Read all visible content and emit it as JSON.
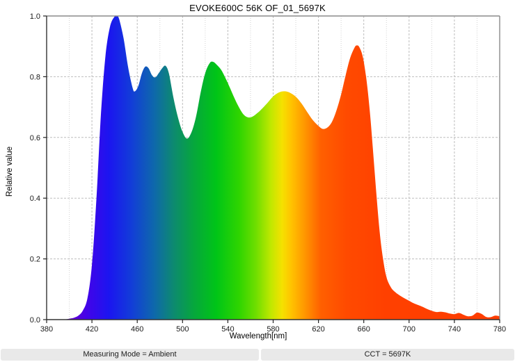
{
  "title": "EVOKE600C 56K OF_01_5697K",
  "status_bar": {
    "left": "Measuring Mode = Ambient",
    "right": "CCT = 5697K"
  },
  "chart_data": {
    "type": "area",
    "title": "EVOKE600C 56K OF_01_5697K",
    "xlabel": "Wavelength[nm]",
    "ylabel": "Relative value",
    "xlim": [
      380,
      780
    ],
    "ylim": [
      0.0,
      1.0
    ],
    "x_ticks": [
      380,
      420,
      460,
      500,
      540,
      580,
      620,
      660,
      700,
      740,
      780
    ],
    "y_ticks": [
      0.0,
      0.2,
      0.4,
      0.6,
      0.8,
      1.0
    ],
    "y_tick_labels": [
      "0.0",
      "0.2",
      "0.4",
      "0.6",
      "0.8",
      "1.0"
    ],
    "grid": "dashed major gridlines every 40nm and 0.2; dotted minor vertical gridlines every 20nm",
    "legend": "none",
    "annotations": {
      "peak_blue_nm": 442,
      "peak_blue_value": 1.0,
      "peak_cyan1_nm": 468,
      "peak_cyan1_value": 0.835,
      "peak_cyan2_nm": 486,
      "peak_cyan2_value": 0.835,
      "peak_green_nm": 527,
      "peak_green_value": 0.85,
      "hump_yellow_nm": 590,
      "hump_yellow_value": 0.75,
      "peak_red_nm": 654,
      "peak_red_value": 0.9,
      "dip_teal_nm": 504,
      "dip_teal_value": 0.6,
      "dip_lime_nm": 558,
      "dip_lime_value": 0.665,
      "dip_orange_nm": 624,
      "dip_orange_value": 0.63
    },
    "points": [
      [
        380,
        0
      ],
      [
        390,
        0
      ],
      [
        396,
        0.001
      ],
      [
        400,
        0.003
      ],
      [
        404,
        0.006
      ],
      [
        408,
        0.013
      ],
      [
        412,
        0.03
      ],
      [
        416,
        0.07
      ],
      [
        420,
        0.18
      ],
      [
        424,
        0.4
      ],
      [
        428,
        0.68
      ],
      [
        432,
        0.87
      ],
      [
        436,
        0.965
      ],
      [
        440,
        0.998
      ],
      [
        442,
        1.0
      ],
      [
        444,
        0.99
      ],
      [
        448,
        0.925
      ],
      [
        452,
        0.83
      ],
      [
        456,
        0.762
      ],
      [
        458,
        0.752
      ],
      [
        461,
        0.77
      ],
      [
        464,
        0.81
      ],
      [
        467,
        0.833
      ],
      [
        470,
        0.828
      ],
      [
        473,
        0.805
      ],
      [
        476,
        0.798
      ],
      [
        479,
        0.812
      ],
      [
        482,
        0.828
      ],
      [
        485,
        0.836
      ],
      [
        488,
        0.81
      ],
      [
        492,
        0.73
      ],
      [
        496,
        0.665
      ],
      [
        500,
        0.618
      ],
      [
        504,
        0.596
      ],
      [
        508,
        0.618
      ],
      [
        512,
        0.67
      ],
      [
        516,
        0.748
      ],
      [
        520,
        0.812
      ],
      [
        524,
        0.845
      ],
      [
        527,
        0.849
      ],
      [
        530,
        0.84
      ],
      [
        534,
        0.823
      ],
      [
        538,
        0.795
      ],
      [
        542,
        0.762
      ],
      [
        546,
        0.728
      ],
      [
        550,
        0.698
      ],
      [
        554,
        0.675
      ],
      [
        558,
        0.666
      ],
      [
        562,
        0.669
      ],
      [
        566,
        0.68
      ],
      [
        570,
        0.694
      ],
      [
        575,
        0.714
      ],
      [
        580,
        0.735
      ],
      [
        585,
        0.748
      ],
      [
        590,
        0.752
      ],
      [
        595,
        0.747
      ],
      [
        600,
        0.734
      ],
      [
        605,
        0.712
      ],
      [
        610,
        0.684
      ],
      [
        615,
        0.657
      ],
      [
        620,
        0.638
      ],
      [
        624,
        0.628
      ],
      [
        628,
        0.633
      ],
      [
        632,
        0.652
      ],
      [
        636,
        0.69
      ],
      [
        640,
        0.742
      ],
      [
        644,
        0.805
      ],
      [
        648,
        0.862
      ],
      [
        652,
        0.897
      ],
      [
        654,
        0.903
      ],
      [
        656,
        0.898
      ],
      [
        659,
        0.868
      ],
      [
        662,
        0.8
      ],
      [
        665,
        0.7
      ],
      [
        668,
        0.565
      ],
      [
        671,
        0.42
      ],
      [
        674,
        0.29
      ],
      [
        677,
        0.2
      ],
      [
        680,
        0.14
      ],
      [
        684,
        0.106
      ],
      [
        688,
        0.09
      ],
      [
        692,
        0.079
      ],
      [
        696,
        0.07
      ],
      [
        700,
        0.062
      ],
      [
        704,
        0.054
      ],
      [
        708,
        0.048
      ],
      [
        712,
        0.042
      ],
      [
        716,
        0.035
      ],
      [
        720,
        0.029
      ],
      [
        724,
        0.025
      ],
      [
        728,
        0.026
      ],
      [
        732,
        0.024
      ],
      [
        736,
        0.02
      ],
      [
        740,
        0.018
      ],
      [
        744,
        0.022
      ],
      [
        748,
        0.016
      ],
      [
        752,
        0.011
      ],
      [
        756,
        0.013
      ],
      [
        760,
        0.023
      ],
      [
        764,
        0.019
      ],
      [
        768,
        0.009
      ],
      [
        772,
        0.008
      ],
      [
        776,
        0.013
      ],
      [
        780,
        0.011
      ]
    ],
    "gradient": [
      {
        "pos": 5,
        "color": "#6600d2"
      },
      {
        "pos": 8.75,
        "color": "#4403e8"
      },
      {
        "pos": 13.75,
        "color": "#1b15f0"
      },
      {
        "pos": 18.75,
        "color": "#123dd8"
      },
      {
        "pos": 23.75,
        "color": "#0e68ab"
      },
      {
        "pos": 28,
        "color": "#0d8a70"
      },
      {
        "pos": 32.5,
        "color": "#06a73c"
      },
      {
        "pos": 37.5,
        "color": "#00c517"
      },
      {
        "pos": 42.5,
        "color": "#2fd500"
      },
      {
        "pos": 46.25,
        "color": "#70de00"
      },
      {
        "pos": 49.5,
        "color": "#c0e800"
      },
      {
        "pos": 52,
        "color": "#f5e100"
      },
      {
        "pos": 54,
        "color": "#ffc300"
      },
      {
        "pos": 57,
        "color": "#ff9600"
      },
      {
        "pos": 60.5,
        "color": "#ff6000"
      },
      {
        "pos": 66.25,
        "color": "#ff4a00"
      },
      {
        "pos": 75,
        "color": "#ff4000"
      },
      {
        "pos": 100,
        "color": "#fe3d00"
      }
    ],
    "colors": {
      "spine_major": "#333333",
      "spine_minor": "#8a8a8a",
      "grid_major": "#bdbdbd",
      "grid_minor": "#d2d2d2",
      "tick": "#222222",
      "status_chip_bg": "#e9e9e9"
    }
  }
}
